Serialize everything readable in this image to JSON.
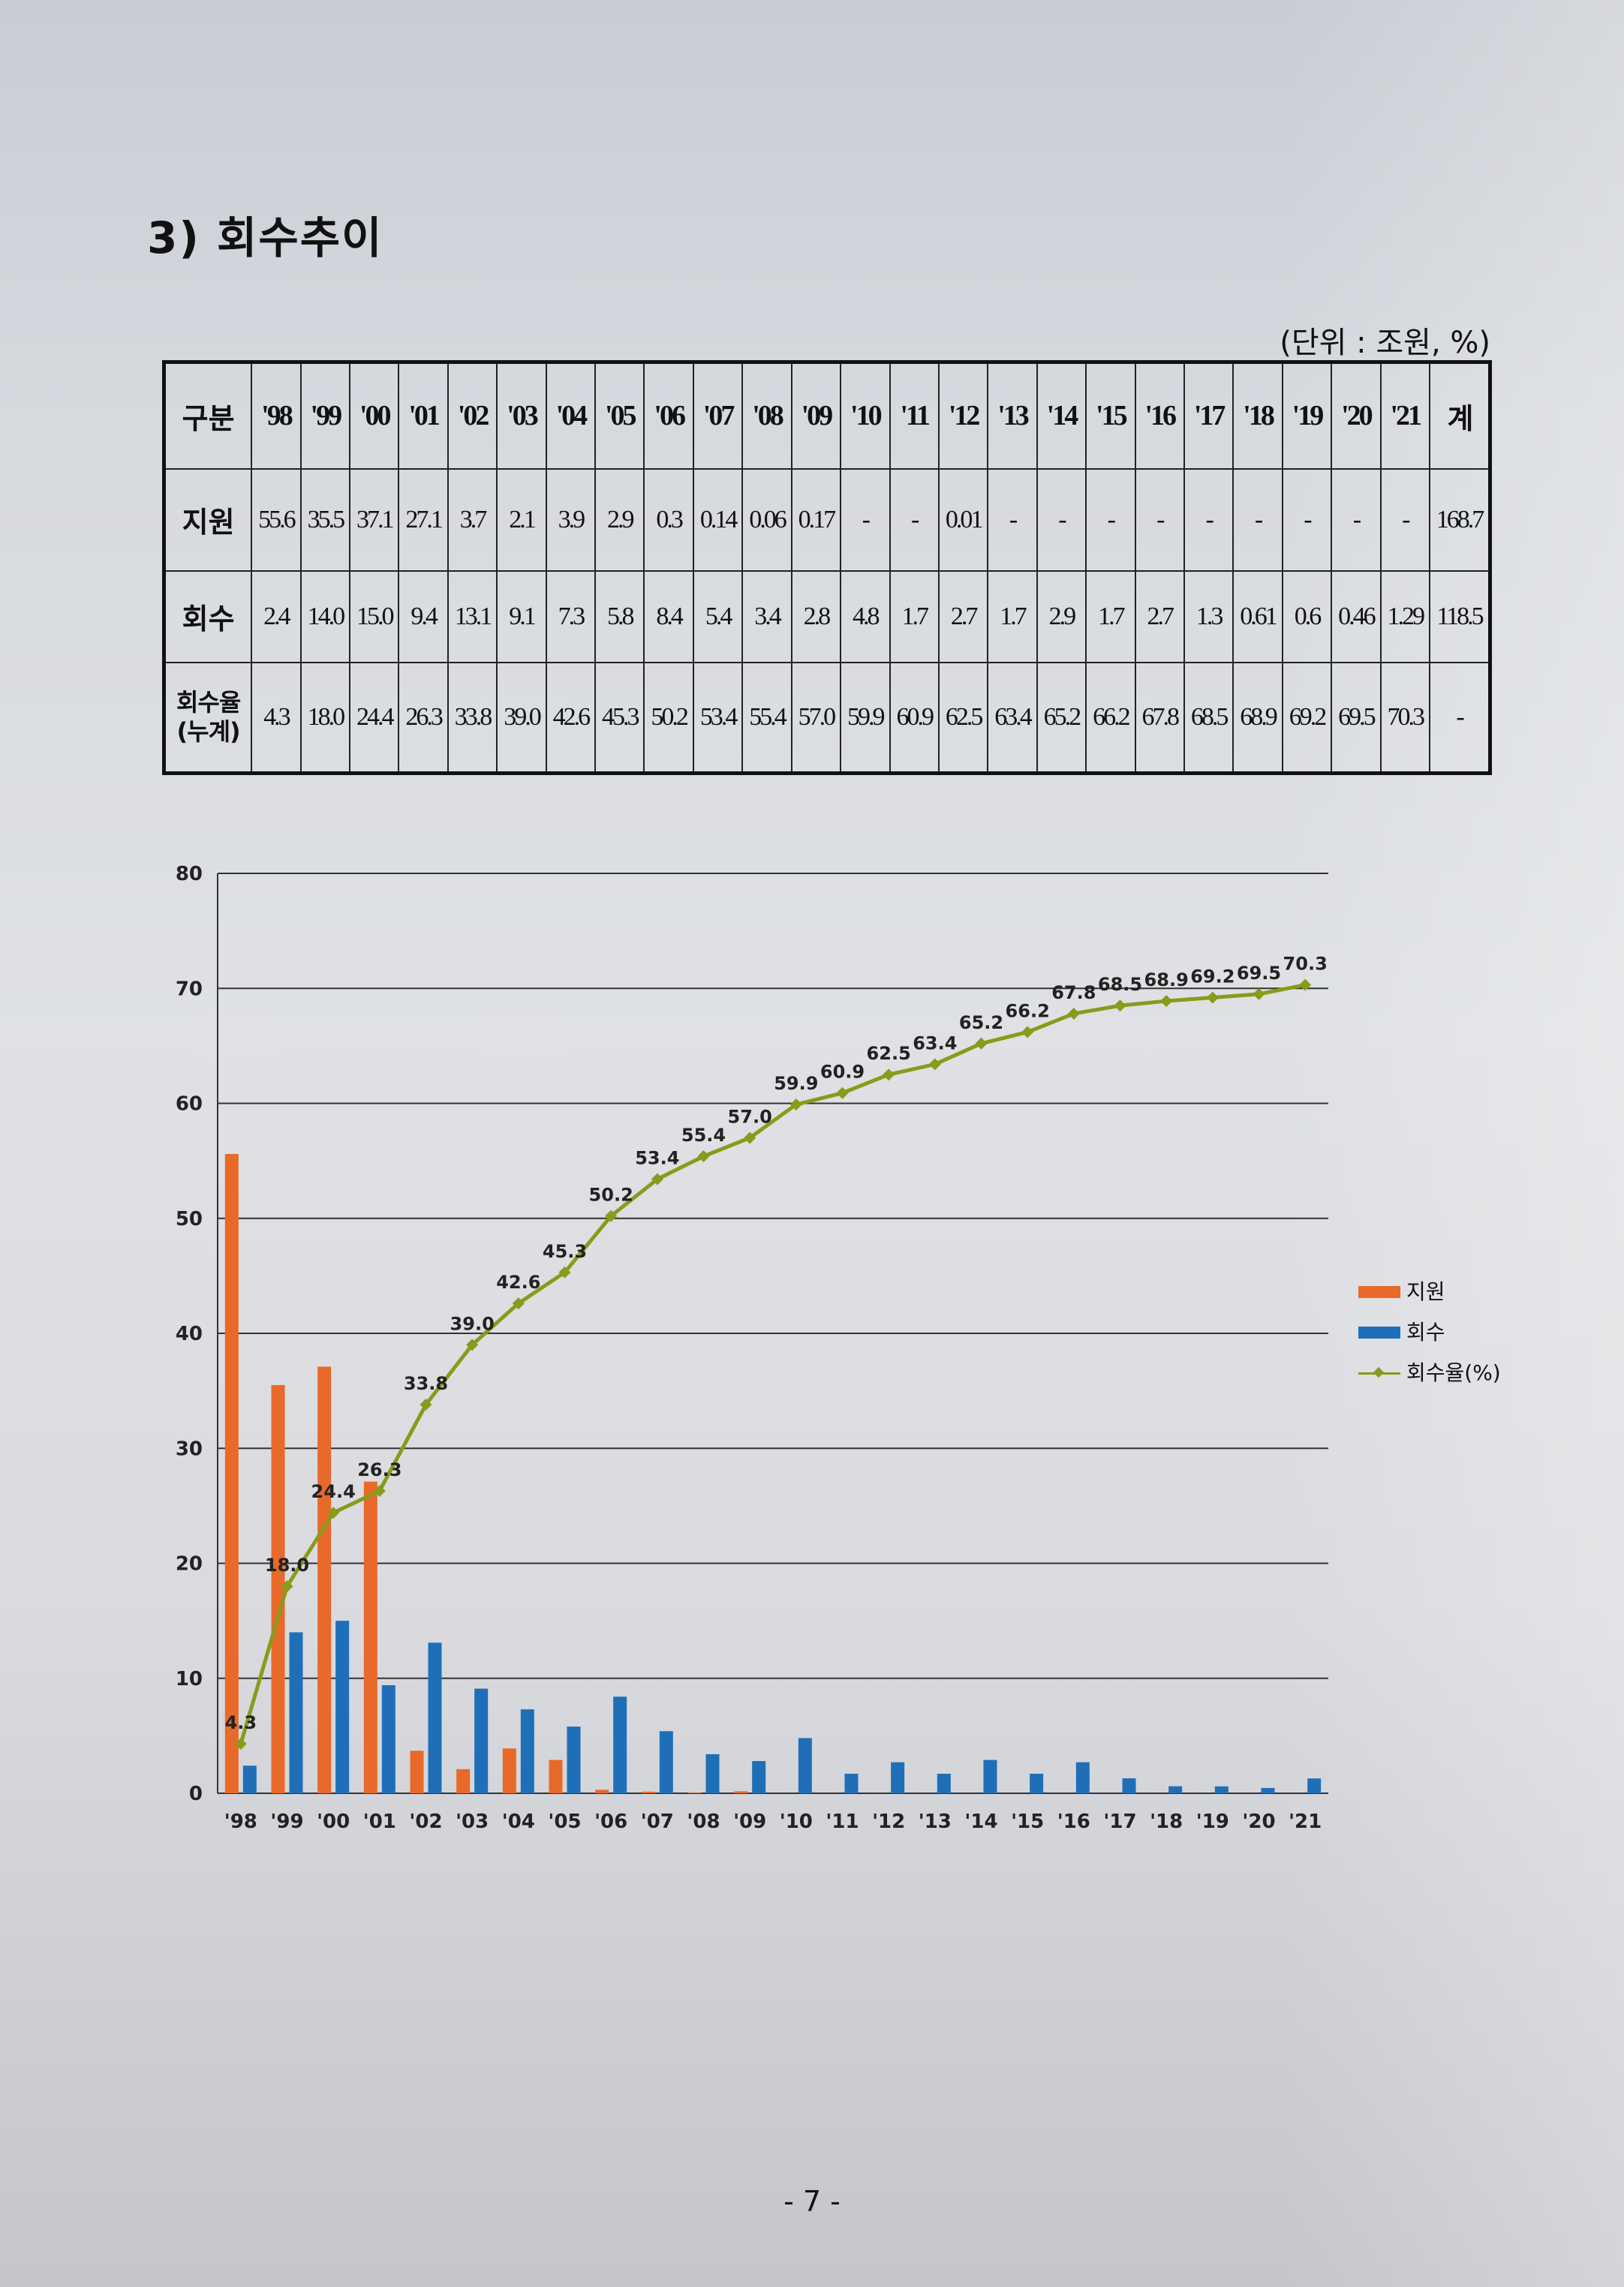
{
  "section_title": "3) 회수추이",
  "unit": "(단위 : 조원, %)",
  "table": {
    "header": [
      "구분",
      "'98",
      "'99",
      "'00",
      "'01",
      "'02",
      "'03",
      "'04",
      "'05",
      "'06",
      "'07",
      "'08",
      "'09",
      "'10",
      "'11",
      "'12",
      "'13",
      "'14",
      "'15",
      "'16",
      "'17",
      "'18",
      "'19",
      "'20",
      "'21",
      "계"
    ],
    "rows": [
      {
        "label": "지원",
        "cells": [
          "55.6",
          "35.5",
          "37.1",
          "27.1",
          "3.7",
          "2.1",
          "3.9",
          "2.9",
          "0.3",
          "0.14",
          "0.06",
          "0.17",
          "-",
          "-",
          "0.01",
          "-",
          "-",
          "-",
          "-",
          "-",
          "-",
          "-",
          "-",
          "-",
          "168.7"
        ]
      },
      {
        "label": "회수",
        "cells": [
          "2.4",
          "14.0",
          "15.0",
          "9.4",
          "13.1",
          "9.1",
          "7.3",
          "5.8",
          "8.4",
          "5.4",
          "3.4",
          "2.8",
          "4.8",
          "1.7",
          "2.7",
          "1.7",
          "2.9",
          "1.7",
          "2.7",
          "1.3",
          "0.61",
          "0.6",
          "0.46",
          "1.29",
          "118.5"
        ]
      },
      {
        "label": "회수율 (누계)",
        "cells": [
          "4.3",
          "18.0",
          "24.4",
          "26.3",
          "33.8",
          "39.0",
          "42.6",
          "45.3",
          "50.2",
          "53.4",
          "55.4",
          "57.0",
          "59.9",
          "60.9",
          "62.5",
          "63.4",
          "65.2",
          "66.2",
          "67.8",
          "68.5",
          "68.9",
          "69.2",
          "69.5",
          "70.3",
          "-"
        ]
      }
    ]
  },
  "chart_data": {
    "type": "bar",
    "categories": [
      "'98",
      "'99",
      "'00",
      "'01",
      "'02",
      "'03",
      "'04",
      "'05",
      "'06",
      "'07",
      "'08",
      "'09",
      "'10",
      "'11",
      "'12",
      "'13",
      "'14",
      "'15",
      "'16",
      "'17",
      "'18",
      "'19",
      "'20",
      "'21"
    ],
    "series": [
      {
        "name": "지원",
        "type": "bar",
        "color": "#e8692a",
        "values": [
          55.6,
          35.5,
          37.1,
          27.1,
          3.7,
          2.1,
          3.9,
          2.9,
          0.3,
          0.14,
          0.06,
          0.17,
          0,
          0,
          0.01,
          0,
          0,
          0,
          0,
          0,
          0,
          0,
          0,
          0
        ]
      },
      {
        "name": "회수",
        "type": "bar",
        "color": "#1f6fb8",
        "values": [
          2.4,
          14.0,
          15.0,
          9.4,
          13.1,
          9.1,
          7.3,
          5.8,
          8.4,
          5.4,
          3.4,
          2.8,
          4.8,
          1.7,
          2.7,
          1.7,
          2.9,
          1.7,
          2.7,
          1.3,
          0.61,
          0.6,
          0.46,
          1.29
        ]
      },
      {
        "name": "회수율(%)",
        "type": "line",
        "color": "#8a9a1a",
        "values": [
          4.3,
          18.0,
          24.4,
          26.3,
          33.8,
          39.0,
          42.6,
          45.3,
          50.2,
          53.4,
          55.4,
          57.0,
          59.9,
          60.9,
          62.5,
          63.4,
          65.2,
          66.2,
          67.8,
          68.5,
          68.9,
          69.2,
          69.5,
          70.3
        ]
      }
    ],
    "line_labels": [
      "4.3",
      "18.0",
      "24.4",
      "26.3",
      "33.8",
      "39.0",
      "42.6",
      "45.3",
      "50.2",
      "53.4",
      "55.4",
      "57.0",
      "59.9",
      "60.9",
      "62.5",
      "63.4",
      "65.2",
      "66.2",
      "67.8",
      "68.5",
      "68.9",
      "69.2",
      "69.5",
      "70.3"
    ],
    "ylim": [
      0,
      80
    ],
    "yticks": [
      "0",
      "10",
      "20",
      "30",
      "40",
      "50",
      "60",
      "70",
      "80"
    ],
    "grid": true,
    "legend_position": "right"
  },
  "page_number": "- 7 -"
}
